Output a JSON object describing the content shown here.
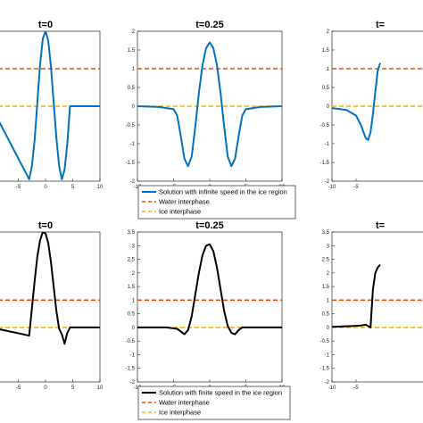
{
  "colors": {
    "infinite_speed": "#0072BD",
    "finite_speed": "#000000",
    "water": "#D95319",
    "ice": "#EDB120",
    "axes": "#262626"
  },
  "legends": [
    {
      "entries": [
        {
          "label": "Solution with infinite speed in the ice region",
          "color": "#0072BD",
          "style": "solid"
        },
        {
          "label": "Water interphase",
          "color": "#D95319",
          "style": "dashed"
        },
        {
          "label": "Ice interphase",
          "color": "#EDB120",
          "style": "dashed"
        }
      ]
    },
    {
      "entries": [
        {
          "label": "Solution with finite speed in the ice region",
          "color": "#000000",
          "style": "solid"
        },
        {
          "label": "Water interphase",
          "color": "#D95319",
          "style": "dashed"
        },
        {
          "label": "Ice interphase",
          "color": "#EDB120",
          "style": "dashed"
        }
      ]
    }
  ],
  "chart_data": [
    {
      "type": "line",
      "title": "t=0",
      "xlim": [
        -10,
        10
      ],
      "ylim": [
        -2,
        2
      ],
      "xticks": [
        -5,
        0,
        5,
        10
      ],
      "yticks": [],
      "series": [
        {
          "x": [
            -10,
            -3,
            -2.5,
            -2,
            -1.5,
            -1,
            -0.5,
            0,
            0.5,
            1,
            1.5,
            2,
            2.5,
            3,
            3.5,
            4,
            4.5,
            10
          ],
          "y": [
            0,
            -1.95,
            -1.6,
            -0.9,
            0.1,
            1.1,
            1.8,
            2.0,
            1.75,
            1.05,
            0.1,
            -0.85,
            -1.6,
            -1.95,
            -1.7,
            -1.0,
            0,
            0
          ],
          "color": "#0072BD",
          "style": "solid"
        },
        {
          "x": [
            -10,
            10
          ],
          "y": [
            1,
            1
          ],
          "color": "#D95319",
          "style": "dashed"
        },
        {
          "x": [
            -10,
            10
          ],
          "y": [
            0,
            0
          ],
          "color": "#EDB120",
          "style": "dashed"
        }
      ]
    },
    {
      "type": "line",
      "title": "t=0.25",
      "xlim": [
        -10,
        10
      ],
      "ylim": [
        -2,
        2
      ],
      "xticks": [
        -10,
        -5,
        0,
        5,
        10
      ],
      "yticks": [
        -2,
        -1.5,
        -1,
        -0.5,
        0,
        0.5,
        1,
        1.5,
        2
      ],
      "series": [
        {
          "x": [
            -10,
            -7,
            -5,
            -4.5,
            -4,
            -3.5,
            -3,
            -2.5,
            -2,
            -1.5,
            -1,
            -0.5,
            0,
            0.5,
            1,
            1.5,
            2,
            2.5,
            3,
            3.5,
            4,
            4.5,
            5,
            7,
            10
          ],
          "y": [
            0,
            -0.02,
            -0.08,
            -0.25,
            -0.8,
            -1.4,
            -1.6,
            -1.35,
            -0.55,
            0.35,
            1.1,
            1.55,
            1.7,
            1.55,
            1.1,
            0.35,
            -0.55,
            -1.35,
            -1.6,
            -1.4,
            -0.8,
            -0.25,
            -0.08,
            -0.02,
            0
          ],
          "color": "#0072BD",
          "style": "solid"
        },
        {
          "x": [
            -10,
            10
          ],
          "y": [
            1,
            1
          ],
          "color": "#D95319",
          "style": "dashed"
        },
        {
          "x": [
            -10,
            10
          ],
          "y": [
            0,
            0
          ],
          "color": "#EDB120",
          "style": "dashed"
        }
      ]
    },
    {
      "type": "line",
      "title": "t=",
      "xlim": [
        -10,
        10
      ],
      "ylim": [
        -2,
        2
      ],
      "xticks": [
        -10,
        -5
      ],
      "yticks": [
        -2,
        -1.5,
        -1,
        -0.5,
        0,
        0.5,
        1,
        1.5,
        2
      ],
      "series": [
        {
          "x": [
            -10,
            -7,
            -5,
            -4,
            -3,
            -2.5,
            -2,
            -1.5,
            -1,
            -0.5,
            0
          ],
          "y": [
            -0.05,
            -0.1,
            -0.25,
            -0.5,
            -0.85,
            -0.9,
            -0.7,
            -0.2,
            0.4,
            0.95,
            1.15
          ],
          "color": "#0072BD",
          "style": "solid"
        },
        {
          "x": [
            -10,
            10
          ],
          "y": [
            1,
            1
          ],
          "color": "#D95319",
          "style": "dashed"
        },
        {
          "x": [
            -10,
            10
          ],
          "y": [
            0,
            0
          ],
          "color": "#EDB120",
          "style": "dashed"
        }
      ]
    },
    {
      "type": "line",
      "title": "t=0",
      "xlim": [
        -10,
        10
      ],
      "ylim": [
        -2,
        3.5
      ],
      "xticks": [
        -5,
        0,
        5,
        10
      ],
      "yticks": [],
      "series": [
        {
          "x": [
            -10,
            -3,
            -2.5,
            -2,
            -1.5,
            -1,
            -0.5,
            0,
            0.5,
            1,
            1.5,
            2,
            2.5,
            3,
            3.5,
            4,
            4.5,
            10
          ],
          "y": [
            0,
            -0.3,
            0.7,
            1.7,
            2.6,
            3.2,
            3.5,
            3.45,
            3.1,
            2.4,
            1.5,
            0.6,
            -0.05,
            -0.25,
            -0.6,
            -0.2,
            0,
            0
          ],
          "color": "#000000",
          "style": "solid"
        },
        {
          "x": [
            -10,
            10
          ],
          "y": [
            1,
            1
          ],
          "color": "#D95319",
          "style": "dashed"
        },
        {
          "x": [
            -10,
            10
          ],
          "y": [
            0,
            0
          ],
          "color": "#EDB120",
          "style": "dashed"
        }
      ]
    },
    {
      "type": "line",
      "title": "t=0.25",
      "xlim": [
        -10,
        10
      ],
      "ylim": [
        -2,
        3.5
      ],
      "xticks": [
        -10,
        -5,
        0,
        5,
        10
      ],
      "yticks": [
        -2,
        -1.5,
        -1,
        -0.5,
        0,
        0.5,
        1,
        1.5,
        2,
        2.5,
        3,
        3.5
      ],
      "series": [
        {
          "x": [
            -10,
            -6,
            -4.5,
            -4,
            -3.5,
            -3,
            -2.5,
            -2,
            -1.5,
            -1,
            -0.5,
            0,
            0.5,
            1,
            1.5,
            2,
            2.5,
            3,
            3.5,
            4,
            4.5,
            6,
            10
          ],
          "y": [
            0,
            0,
            -0.05,
            -0.15,
            -0.25,
            -0.1,
            0.4,
            1.2,
            2.0,
            2.65,
            3.0,
            3.05,
            2.8,
            2.2,
            1.4,
            0.6,
            0.05,
            -0.2,
            -0.25,
            -0.1,
            0,
            0,
            0
          ],
          "color": "#000000",
          "style": "solid"
        },
        {
          "x": [
            -10,
            10
          ],
          "y": [
            1,
            1
          ],
          "color": "#D95319",
          "style": "dashed"
        },
        {
          "x": [
            -10,
            10
          ],
          "y": [
            0,
            0
          ],
          "color": "#EDB120",
          "style": "dashed"
        }
      ]
    },
    {
      "type": "line",
      "title": "t=",
      "xlim": [
        -10,
        10
      ],
      "ylim": [
        -2,
        3.5
      ],
      "xticks": [
        -10,
        -5
      ],
      "yticks": [
        -2,
        -1.5,
        -1,
        -0.5,
        0,
        0.5,
        1,
        1.5,
        2,
        2.5,
        3,
        3.5
      ],
      "series": [
        {
          "x": [
            -10,
            -6,
            -4,
            -3,
            -2.5,
            -2,
            -1.5,
            -1,
            -0.5,
            0
          ],
          "y": [
            0.02,
            0.05,
            0.07,
            0.1,
            0.05,
            0.0,
            1.4,
            2.0,
            2.2,
            2.3
          ],
          "color": "#000000",
          "style": "solid"
        },
        {
          "x": [
            -10,
            10
          ],
          "y": [
            1,
            1
          ],
          "color": "#D95319",
          "style": "dashed"
        },
        {
          "x": [
            -10,
            10
          ],
          "y": [
            0,
            0
          ],
          "color": "#EDB120",
          "style": "dashed"
        }
      ]
    }
  ]
}
